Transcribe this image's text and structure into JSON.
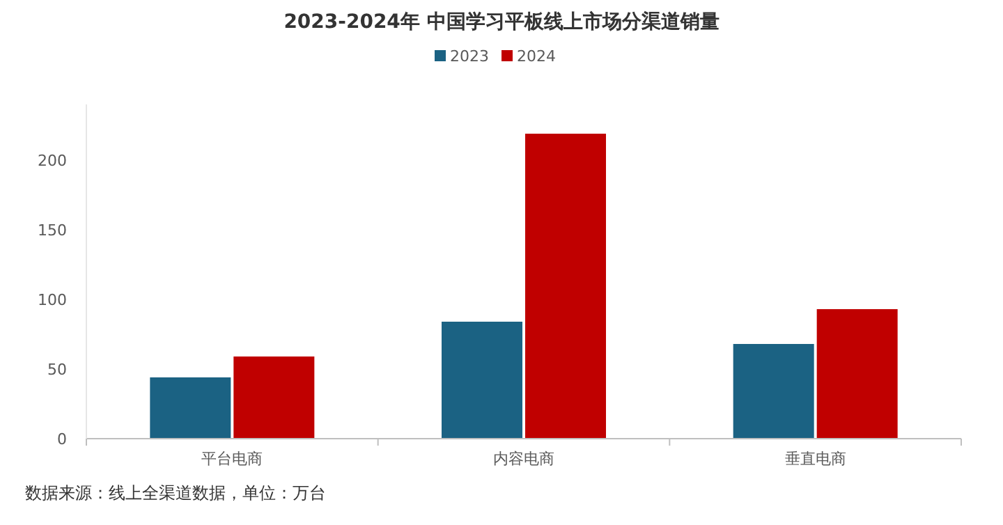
{
  "chart_data": {
    "type": "bar",
    "title": "2023-2024年 中国学习平板线上市场分渠道销量",
    "categories": [
      "平台电商",
      "内容电商",
      "垂直电商"
    ],
    "series": [
      {
        "name": "2023",
        "color": "#1b6283",
        "values": [
          44,
          84,
          68
        ]
      },
      {
        "name": "2024",
        "color": "#c00000",
        "values": [
          59,
          219,
          93
        ]
      }
    ],
    "ylim": [
      0,
      240
    ],
    "yticks": [
      0,
      50,
      100,
      150,
      200
    ],
    "grid": false,
    "legend": "top",
    "annotations": [
      "数据来源：线上全渠道数据，单位：万台"
    ]
  }
}
